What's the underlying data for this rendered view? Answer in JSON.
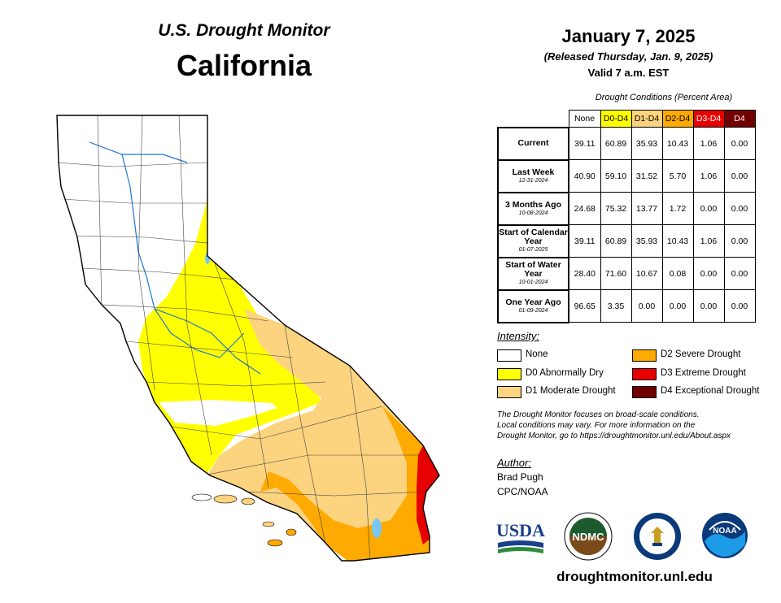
{
  "header": {
    "subtitle": "U.S. Drought Monitor",
    "state": "California",
    "date": "January 7, 2025",
    "released": "(Released Thursday, Jan. 9, 2025)",
    "valid": "Valid 7 a.m. EST"
  },
  "table": {
    "caption": "Drought Conditions (Percent Area)",
    "columns": [
      "None",
      "D0-D4",
      "D1-D4",
      "D2-D4",
      "D3-D4",
      "D4"
    ],
    "rows": [
      {
        "label": "Current",
        "date": "",
        "values": [
          "39.11",
          "60.89",
          "35.93",
          "10.43",
          "1.06",
          "0.00"
        ]
      },
      {
        "label": "Last Week",
        "date": "12-31-2024",
        "values": [
          "40.90",
          "59.10",
          "31.52",
          "5.70",
          "1.06",
          "0.00"
        ]
      },
      {
        "label": "3 Months Ago",
        "date": "10-08-2024",
        "values": [
          "24.68",
          "75.32",
          "13.77",
          "1.72",
          "0.00",
          "0.00"
        ]
      },
      {
        "label": "Start of Calendar Year",
        "date": "01-07-2025",
        "values": [
          "39.11",
          "60.89",
          "35.93",
          "10.43",
          "1.06",
          "0.00"
        ]
      },
      {
        "label": "Start of Water Year",
        "date": "10-01-2024",
        "values": [
          "28.40",
          "71.60",
          "10.67",
          "0.08",
          "0.00",
          "0.00"
        ]
      },
      {
        "label": "One Year Ago",
        "date": "01-09-2024",
        "values": [
          "96.65",
          "3.35",
          "0.00",
          "0.00",
          "0.00",
          "0.00"
        ]
      }
    ]
  },
  "legend": {
    "title": "Intensity:",
    "items": [
      {
        "label": "None",
        "color": "#ffffff"
      },
      {
        "label": "D0 Abnormally Dry",
        "color": "#ffff00"
      },
      {
        "label": "D1 Moderate Drought",
        "color": "#fcd37f"
      },
      {
        "label": "D2 Severe Drought",
        "color": "#ffaa00"
      },
      {
        "label": "D3 Extreme Drought",
        "color": "#e60000"
      },
      {
        "label": "D4 Exceptional Drought",
        "color": "#730000"
      }
    ]
  },
  "note": {
    "line1": "The Drought Monitor focuses on broad-scale conditions.",
    "line2": "Local conditions may vary. For more information on the",
    "line3": "Drought Monitor, go to https://droughtmonitor.unl.edu/About.aspx"
  },
  "author": {
    "title": "Author:",
    "name": "Brad Pugh",
    "org": "CPC/NOAA"
  },
  "logos": {
    "usda": "USDA",
    "ndmc": "NDMC",
    "noaa": "NOAA"
  },
  "footer_url": "droughtmonitor.unl.edu"
}
